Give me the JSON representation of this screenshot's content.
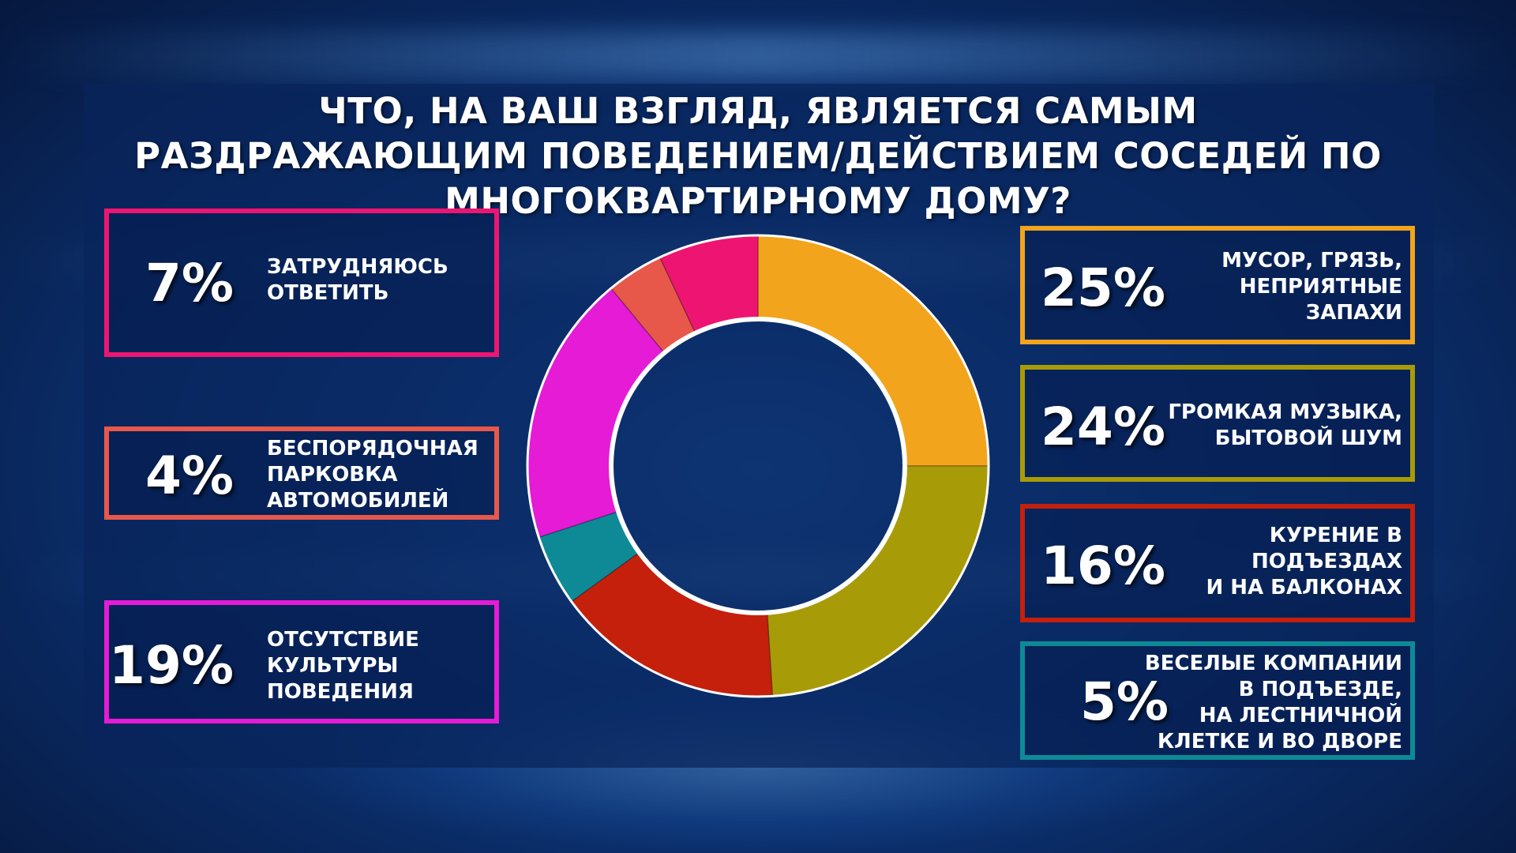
{
  "title": "Что, на ваш взгляд, является самым раздражающим поведением/действием соседей по многоквартирному дому?",
  "chart_data": {
    "type": "pie",
    "variant": "donut",
    "title": "Что, на ваш взгляд, является самым раздражающим поведением/действием соседей по многоквартирному дому?",
    "slices": [
      {
        "label": "Мусор, грязь,\nнеприятные\nзапахи",
        "value": 25,
        "value_label": "25%",
        "color": "#f2a41c"
      },
      {
        "label": "Громкая музыка,\nбытовой шум",
        "value": 24,
        "value_label": "24%",
        "color": "#a89b08"
      },
      {
        "label": "Курение в\nподъездах\nи на балконах",
        "value": 16,
        "value_label": "16%",
        "color": "#c4200c"
      },
      {
        "label": "Веселые компании\nв подъезде,\nна лестничной\nклетке и во дворе",
        "value": 5,
        "value_label": "5%",
        "color": "#0e8a96"
      },
      {
        "label": "Отсутствие\nкультуры\nповедения",
        "value": 19,
        "value_label": "19%",
        "color": "#e51bd6"
      },
      {
        "label": "Беспорядочная\nпарковка\nавтомобилей",
        "value": 4,
        "value_label": "4%",
        "color": "#e8584a"
      },
      {
        "label": "Затрудняюсь\nответить",
        "value": 7,
        "value_label": "7%",
        "color": "#ee1572"
      }
    ]
  }
}
